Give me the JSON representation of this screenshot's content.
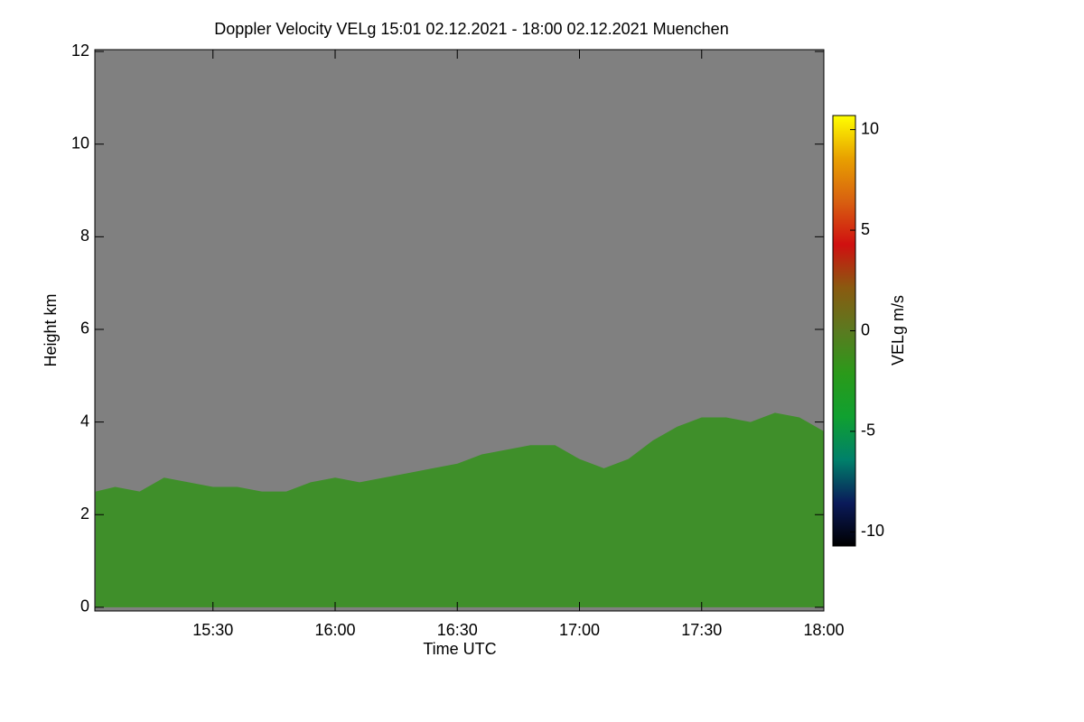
{
  "chart_data": {
    "type": "area",
    "title": "Doppler Velocity VELg   15:01 02.12.2021 - 18:00 02.12.2021 Muenchen",
    "x_label": "Time UTC",
    "y_label": "Height km",
    "x": [
      15.02,
      15.1,
      15.2,
      15.3,
      15.4,
      15.5,
      15.6,
      15.7,
      15.8,
      15.9,
      16.0,
      16.1,
      16.2,
      16.3,
      16.4,
      16.5,
      16.6,
      16.7,
      16.8,
      16.9,
      17.0,
      17.1,
      17.2,
      17.3,
      17.4,
      17.5,
      17.6,
      17.7,
      17.8,
      17.9,
      18.0
    ],
    "values": [
      2.5,
      2.6,
      2.5,
      2.8,
      2.7,
      2.6,
      2.6,
      2.5,
      2.5,
      2.7,
      2.8,
      2.7,
      2.8,
      2.9,
      3.0,
      3.1,
      3.3,
      3.4,
      3.5,
      3.5,
      3.2,
      3.0,
      3.2,
      3.6,
      3.9,
      4.1,
      4.1,
      4.0,
      4.2,
      4.1,
      3.8
    ],
    "color": "#3f8f2a",
    "background": "#808080",
    "xlim": [
      15.0167,
      18.0
    ],
    "xticks": [
      {
        "value": 15.5,
        "label": "15:30"
      },
      {
        "value": 16.0,
        "label": "16:00"
      },
      {
        "value": 16.5,
        "label": "16:30"
      },
      {
        "value": 17.0,
        "label": "17:00"
      },
      {
        "value": 17.5,
        "label": "17:30"
      },
      {
        "value": 18.0,
        "label": "18:00"
      }
    ],
    "ylim": [
      -0.08,
      12.04
    ],
    "yticks": [
      0,
      2,
      4,
      6,
      8,
      10,
      12
    ],
    "colorbar": {
      "label": "VELg m/s",
      "clim": [
        -10.7,
        10.7
      ],
      "ticks": [
        10,
        5,
        0,
        -5,
        -10
      ],
      "colormap": [
        "#000000",
        "#0a1a5a",
        "#00806a",
        "#10a030",
        "#2a9a1a",
        "#5a7a20",
        "#8a5a10",
        "#d01010",
        "#d86010",
        "#e8a000",
        "#ffff00"
      ]
    }
  }
}
